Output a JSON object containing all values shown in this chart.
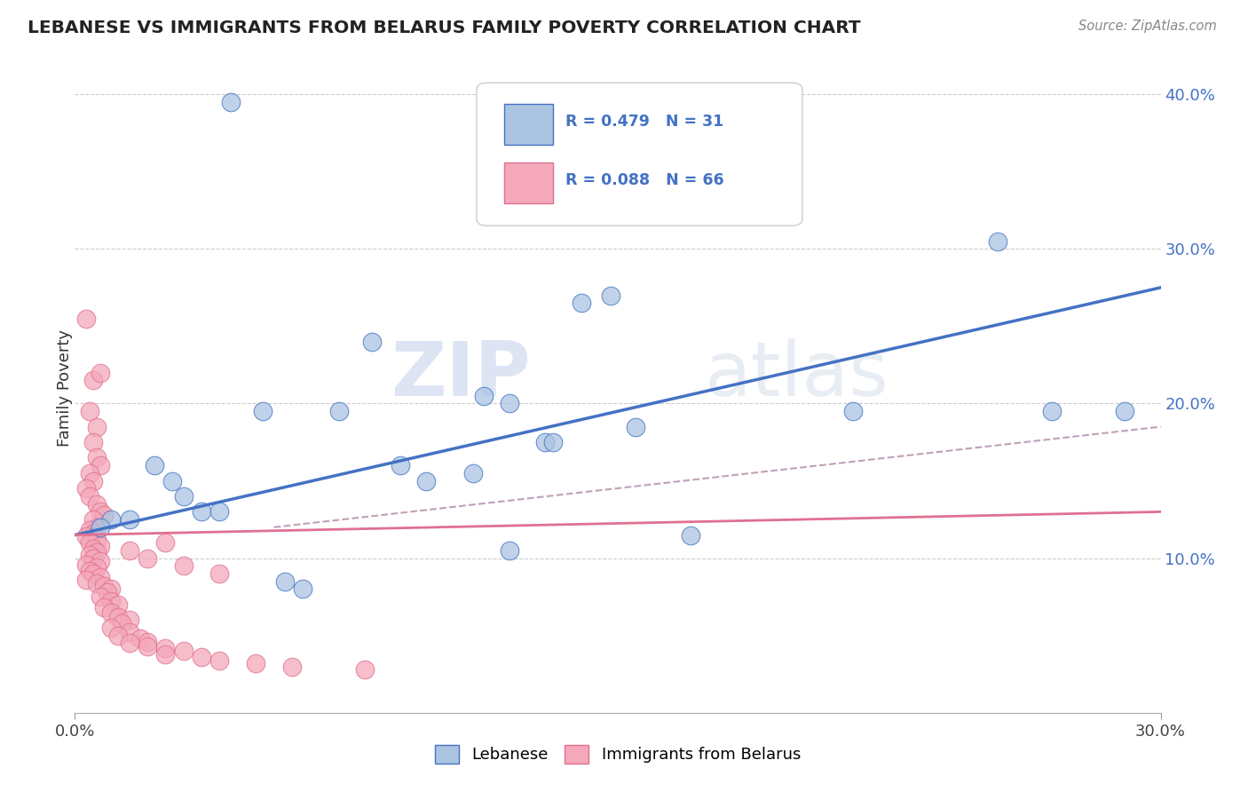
{
  "title": "LEBANESE VS IMMIGRANTS FROM BELARUS FAMILY POVERTY CORRELATION CHART",
  "source": "Source: ZipAtlas.com",
  "ylabel": "Family Poverty",
  "xlim": [
    0.0,
    0.3
  ],
  "ylim": [
    0.0,
    0.42
  ],
  "xtick_positions": [
    0.0,
    0.3
  ],
  "xtick_labels": [
    "0.0%",
    "30.0%"
  ],
  "ytick_values": [
    0.1,
    0.2,
    0.3,
    0.4
  ],
  "ytick_labels": [
    "10.0%",
    "20.0%",
    "30.0%",
    "40.0%"
  ],
  "color_blue": "#aac4e2",
  "color_pink": "#f4a8ba",
  "line_blue": "#4472c4",
  "line_pink": "#e07090",
  "line_dashed_color": "#c0a0b8",
  "watermark_color": "#c8d8ea",
  "blue_scatter": [
    [
      0.043,
      0.395
    ],
    [
      0.115,
      0.335
    ],
    [
      0.073,
      0.195
    ],
    [
      0.14,
      0.265
    ],
    [
      0.148,
      0.27
    ],
    [
      0.082,
      0.24
    ],
    [
      0.113,
      0.205
    ],
    [
      0.12,
      0.2
    ],
    [
      0.13,
      0.175
    ],
    [
      0.132,
      0.175
    ],
    [
      0.09,
      0.16
    ],
    [
      0.097,
      0.15
    ],
    [
      0.11,
      0.155
    ],
    [
      0.155,
      0.185
    ],
    [
      0.27,
      0.195
    ],
    [
      0.052,
      0.195
    ],
    [
      0.255,
      0.305
    ],
    [
      0.215,
      0.195
    ],
    [
      0.29,
      0.195
    ],
    [
      0.022,
      0.16
    ],
    [
      0.027,
      0.15
    ],
    [
      0.03,
      0.14
    ],
    [
      0.035,
      0.13
    ],
    [
      0.04,
      0.13
    ],
    [
      0.01,
      0.125
    ],
    [
      0.015,
      0.125
    ],
    [
      0.007,
      0.12
    ],
    [
      0.058,
      0.085
    ],
    [
      0.063,
      0.08
    ],
    [
      0.17,
      0.115
    ],
    [
      0.12,
      0.105
    ]
  ],
  "pink_scatter": [
    [
      0.003,
      0.255
    ],
    [
      0.005,
      0.215
    ],
    [
      0.007,
      0.22
    ],
    [
      0.004,
      0.195
    ],
    [
      0.006,
      0.185
    ],
    [
      0.005,
      0.175
    ],
    [
      0.006,
      0.165
    ],
    [
      0.007,
      0.16
    ],
    [
      0.004,
      0.155
    ],
    [
      0.005,
      0.15
    ],
    [
      0.003,
      0.145
    ],
    [
      0.004,
      0.14
    ],
    [
      0.006,
      0.135
    ],
    [
      0.007,
      0.13
    ],
    [
      0.008,
      0.128
    ],
    [
      0.005,
      0.125
    ],
    [
      0.006,
      0.12
    ],
    [
      0.004,
      0.118
    ],
    [
      0.005,
      0.116
    ],
    [
      0.003,
      0.114
    ],
    [
      0.006,
      0.112
    ],
    [
      0.004,
      0.11
    ],
    [
      0.007,
      0.108
    ],
    [
      0.005,
      0.106
    ],
    [
      0.006,
      0.104
    ],
    [
      0.004,
      0.102
    ],
    [
      0.005,
      0.1
    ],
    [
      0.007,
      0.098
    ],
    [
      0.003,
      0.096
    ],
    [
      0.006,
      0.094
    ],
    [
      0.004,
      0.092
    ],
    [
      0.005,
      0.09
    ],
    [
      0.007,
      0.088
    ],
    [
      0.003,
      0.086
    ],
    [
      0.006,
      0.084
    ],
    [
      0.008,
      0.082
    ],
    [
      0.01,
      0.08
    ],
    [
      0.009,
      0.078
    ],
    [
      0.007,
      0.075
    ],
    [
      0.01,
      0.072
    ],
    [
      0.012,
      0.07
    ],
    [
      0.008,
      0.068
    ],
    [
      0.01,
      0.065
    ],
    [
      0.012,
      0.062
    ],
    [
      0.015,
      0.06
    ],
    [
      0.013,
      0.058
    ],
    [
      0.01,
      0.055
    ],
    [
      0.015,
      0.052
    ],
    [
      0.012,
      0.05
    ],
    [
      0.018,
      0.048
    ],
    [
      0.02,
      0.046
    ],
    [
      0.015,
      0.045
    ],
    [
      0.02,
      0.043
    ],
    [
      0.025,
      0.042
    ],
    [
      0.03,
      0.04
    ],
    [
      0.025,
      0.038
    ],
    [
      0.035,
      0.036
    ],
    [
      0.04,
      0.034
    ],
    [
      0.05,
      0.032
    ],
    [
      0.06,
      0.03
    ],
    [
      0.08,
      0.028
    ],
    [
      0.02,
      0.1
    ],
    [
      0.015,
      0.105
    ],
    [
      0.025,
      0.11
    ],
    [
      0.03,
      0.095
    ],
    [
      0.04,
      0.09
    ]
  ],
  "blue_line": [
    [
      0.0,
      0.115
    ],
    [
      0.3,
      0.275
    ]
  ],
  "pink_line": [
    [
      0.0,
      0.115
    ],
    [
      0.3,
      0.13
    ]
  ],
  "dashed_line": [
    [
      0.055,
      0.12
    ],
    [
      0.3,
      0.185
    ]
  ]
}
